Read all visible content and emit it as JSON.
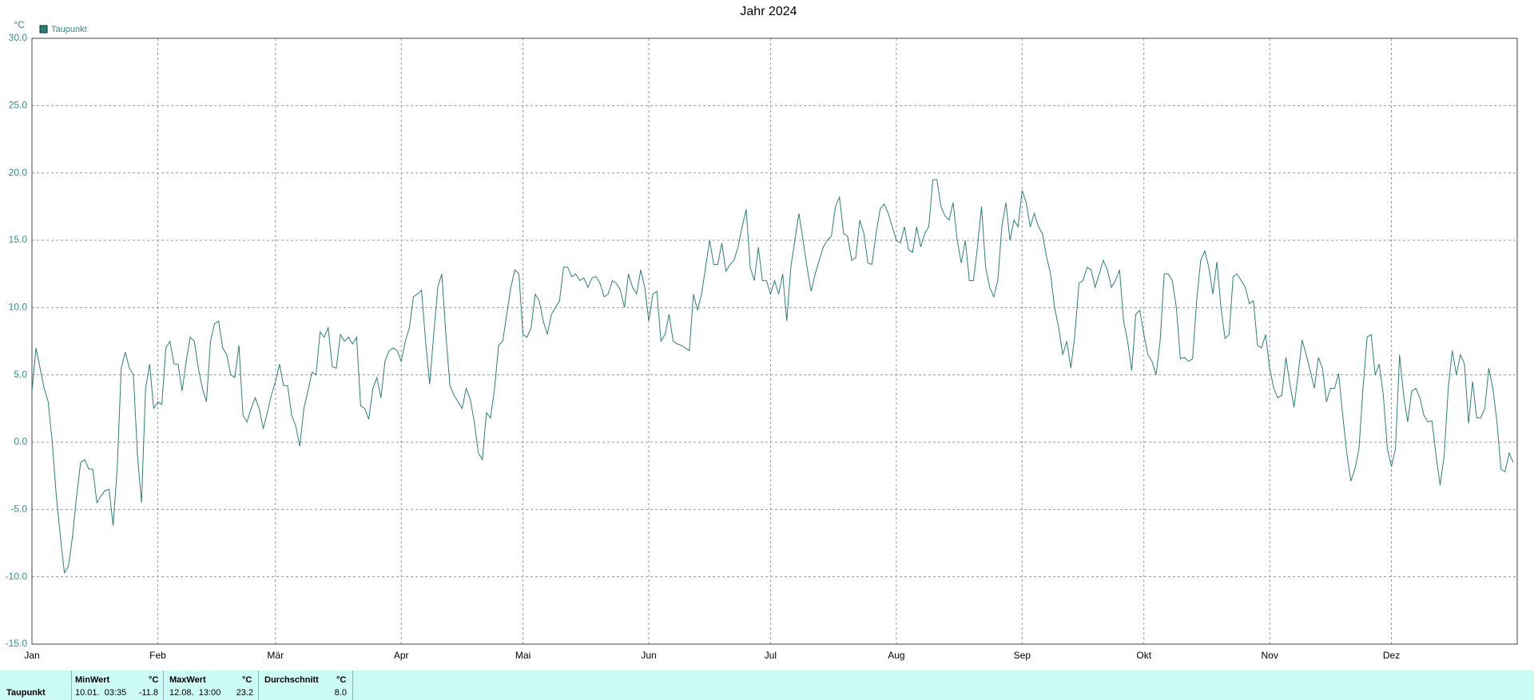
{
  "chart_data": {
    "type": "line",
    "title": "Jahr 2024",
    "y_unit": "°C",
    "x": [
      0,
      1,
      2,
      3,
      4,
      5,
      6,
      7,
      8,
      9,
      10,
      11,
      12,
      13,
      14,
      15,
      16,
      17,
      18,
      19,
      20,
      21,
      22,
      23,
      24,
      25,
      26,
      27,
      28,
      29,
      30,
      31,
      32,
      33,
      34,
      35,
      36,
      37,
      38,
      39,
      40,
      41,
      42,
      43,
      44,
      45,
      46,
      47,
      48,
      49,
      50,
      51,
      52,
      53,
      54,
      55,
      56,
      57,
      58,
      59,
      60,
      61,
      62,
      63,
      64,
      65,
      66,
      67,
      68,
      69,
      70,
      71,
      72,
      73,
      74,
      75,
      76,
      77,
      78,
      79,
      80,
      81,
      82,
      83,
      84,
      85,
      86,
      87,
      88,
      89,
      90,
      91,
      92,
      93,
      94,
      95,
      96,
      97,
      98,
      99,
      100,
      101,
      102,
      103,
      104,
      105,
      106,
      107,
      108,
      109,
      110,
      111,
      112,
      113,
      114,
      115,
      116,
      117,
      118,
      119,
      120,
      121,
      122,
      123,
      124,
      125,
      126,
      127,
      128,
      129,
      130,
      131,
      132,
      133,
      134,
      135,
      136,
      137,
      138,
      139,
      140,
      141,
      142,
      143,
      144,
      145,
      146,
      147,
      148,
      149,
      150,
      151,
      152,
      153,
      154,
      155,
      156,
      157,
      158,
      159,
      160,
      161,
      162,
      163,
      164,
      165,
      166,
      167,
      168,
      169,
      170,
      171,
      172,
      173,
      174,
      175,
      176,
      177,
      178,
      179,
      180,
      181,
      182,
      183,
      184,
      185,
      186,
      187,
      188,
      189,
      190,
      191,
      192,
      193,
      194,
      195,
      196,
      197,
      198,
      199,
      200,
      201,
      202,
      203,
      204,
      205,
      206,
      207,
      208,
      209,
      210,
      211,
      212,
      213,
      214,
      215,
      216,
      217,
      218,
      219,
      220,
      221,
      222,
      223,
      224,
      225,
      226,
      227,
      228,
      229,
      230,
      231,
      232,
      233,
      234,
      235,
      236,
      237,
      238,
      239,
      240,
      241,
      242,
      243,
      244,
      245,
      246,
      247,
      248,
      249,
      250,
      251,
      252,
      253,
      254,
      255,
      256,
      257,
      258,
      259,
      260,
      261,
      262,
      263,
      264,
      265,
      266,
      267,
      268,
      269,
      270,
      271,
      272,
      273,
      274,
      275,
      276,
      277,
      278,
      279,
      280,
      281,
      282,
      283,
      284,
      285,
      286,
      287,
      288,
      289,
      290,
      291,
      292,
      293,
      294,
      295,
      296,
      297,
      298,
      299,
      300,
      301,
      302,
      303,
      304,
      305,
      306,
      307,
      308,
      309,
      310,
      311,
      312,
      313,
      314,
      315,
      316,
      317,
      318,
      319,
      320,
      321,
      322,
      323,
      324,
      325,
      326,
      327,
      328,
      329,
      330,
      331,
      332,
      333,
      334,
      335,
      336,
      337,
      338,
      339,
      340,
      341,
      342,
      343,
      344,
      345,
      346,
      347,
      348,
      349,
      350,
      351,
      352,
      353,
      354,
      355,
      356,
      357,
      358,
      359,
      360,
      361,
      362,
      363,
      364,
      365
    ],
    "series": [
      {
        "name": "Taupunkt",
        "color": "#2f7f78",
        "values": [
          3.8,
          7,
          5.5,
          4,
          3,
          0,
          -4,
          -7,
          -9.7,
          -9.2,
          -7,
          -4,
          -1.5,
          -1.3,
          -2,
          -2,
          -4.5,
          -4,
          -3.6,
          -3.5,
          -6.2,
          -2,
          5.5,
          6.7,
          5.5,
          5,
          -1,
          -4.5,
          4,
          5.8,
          2.5,
          3,
          2.8,
          7,
          7.5,
          5.8,
          5.8,
          3.8,
          6,
          7.8,
          7.5,
          5.5,
          4,
          3,
          7.5,
          8.8,
          9,
          7,
          6.5,
          5,
          4.8,
          7.2,
          2,
          1.5,
          2.5,
          3.3,
          2.5,
          1,
          2.2,
          3.5,
          4.5,
          5.8,
          4.2,
          4.2,
          2,
          1.2,
          -0.3,
          2.5,
          3.8,
          5.2,
          5,
          8.2,
          7.8,
          8.5,
          5.6,
          5.5,
          8,
          7.5,
          7.8,
          7.3,
          7.8,
          2.7,
          2.5,
          1.7,
          4,
          4.8,
          3.3,
          6,
          6.8,
          7,
          6.8,
          6,
          7.5,
          8.5,
          10.8,
          11,
          11.3,
          7.5,
          4.3,
          8,
          11.5,
          12.5,
          8,
          4.2,
          3.5,
          3,
          2.5,
          4,
          3.2,
          1.5,
          -0.8,
          -1.3,
          2.2,
          1.8,
          4,
          7.2,
          7.5,
          9.5,
          11.5,
          12.8,
          12.5,
          8,
          7.8,
          8.5,
          11,
          10.5,
          9,
          8,
          9.5,
          10,
          10.5,
          13,
          13,
          12.3,
          12.5,
          12,
          12.2,
          11.5,
          12.2,
          12.3,
          11.8,
          10.8,
          11,
          12,
          11.8,
          11.3,
          10,
          12.5,
          11.5,
          11,
          12.8,
          11.5,
          9,
          11,
          11.2,
          7.5,
          8,
          9.5,
          7.5,
          7.3,
          7.2,
          7,
          6.8,
          11,
          9.8,
          11,
          13,
          15,
          13.2,
          13.2,
          14.8,
          12.7,
          13.2,
          13.5,
          14.5,
          16,
          17.3,
          13,
          12,
          14.5,
          12,
          12,
          11,
          12,
          11,
          12.5,
          9,
          13,
          15,
          17,
          15,
          13,
          11.2,
          12.5,
          13.5,
          14.5,
          15,
          15.3,
          17.5,
          18.2,
          15.5,
          15.3,
          13.5,
          13.7,
          16.5,
          15.5,
          13.3,
          13.2,
          15.5,
          17.3,
          17.7,
          17,
          16,
          15,
          14.8,
          16,
          14.3,
          14.1,
          16,
          14.5,
          15.5,
          16,
          19.5,
          19.5,
          17.5,
          16.8,
          16.5,
          17.8,
          15,
          13.3,
          15,
          12,
          12,
          14.5,
          17.5,
          13,
          11.5,
          10.8,
          12,
          16,
          17.8,
          15,
          16.5,
          16,
          18.7,
          17.8,
          16,
          17,
          16,
          15.5,
          13.8,
          12.5,
          10,
          8.5,
          6.5,
          7.5,
          5.5,
          8,
          11.8,
          12,
          13,
          12.8,
          11.5,
          12.5,
          13.5,
          12.8,
          11.5,
          12,
          12.8,
          9,
          7.5,
          5.3,
          9.5,
          9.8,
          8,
          6.5,
          6,
          5,
          7.5,
          12.5,
          12.5,
          12,
          10,
          6.2,
          6.3,
          6,
          6.2,
          10.5,
          13.5,
          14.2,
          13,
          11,
          13.4,
          10,
          7.7,
          8,
          12.3,
          12.5,
          12,
          11.5,
          10.3,
          10.5,
          7.2,
          7,
          8,
          5.5,
          4,
          3.3,
          3.5,
          6.3,
          4.3,
          2.6,
          5,
          7.6,
          6.5,
          5.3,
          4,
          6.3,
          5.5,
          3,
          4,
          4,
          5.1,
          2,
          -0.8,
          -2.9,
          -2,
          -0.5,
          4,
          7.8,
          8,
          5,
          5.8,
          3.5,
          -0.5,
          -1.8,
          -0.5,
          6.5,
          3.5,
          1.5,
          3.8,
          4,
          3.3,
          2,
          1.5,
          1.6,
          -1,
          -3.2,
          -1,
          4,
          6.8,
          5,
          6.5,
          5.8,
          1.4,
          4.5,
          1.8,
          1.8,
          2.5,
          5.5,
          4,
          1.5,
          -2,
          -2.2,
          -0.8,
          -1.5
        ]
      }
    ],
    "xlim": [
      0,
      366
    ],
    "xticks": [
      {
        "value": 0,
        "label": "Jan"
      },
      {
        "value": 31,
        "label": "Feb"
      },
      {
        "value": 60,
        "label": "Mär"
      },
      {
        "value": 91,
        "label": "Apr"
      },
      {
        "value": 121,
        "label": "Mai"
      },
      {
        "value": 152,
        "label": "Jun"
      },
      {
        "value": 182,
        "label": "Jul"
      },
      {
        "value": 213,
        "label": "Aug"
      },
      {
        "value": 244,
        "label": "Sep"
      },
      {
        "value": 274,
        "label": "Okt"
      },
      {
        "value": 305,
        "label": "Nov"
      },
      {
        "value": 335,
        "label": "Dez"
      }
    ],
    "ylim": [
      -15,
      30
    ],
    "yticks": [
      {
        "value": -15,
        "label": "-15.0"
      },
      {
        "value": -10,
        "label": "-10.0"
      },
      {
        "value": -5,
        "label": "-5.0"
      },
      {
        "value": 0,
        "label": "0.0"
      },
      {
        "value": 5,
        "label": "5.0"
      },
      {
        "value": 10,
        "label": "10.0"
      },
      {
        "value": 15,
        "label": "15.0"
      },
      {
        "value": 20,
        "label": "20.0"
      },
      {
        "value": 25,
        "label": "25.0"
      },
      {
        "value": 30,
        "label": "30.0"
      }
    ],
    "grid": true,
    "legend": "top-left"
  },
  "stats": {
    "headers": [
      "MinWert",
      "°C",
      "MaxWert",
      "°C",
      "Durchschnitt",
      "°C"
    ],
    "row": [
      "Taupunkt",
      "10.01.  03:35",
      "-11.8",
      "12.08.  13:00",
      "23.2",
      "8.0"
    ]
  }
}
